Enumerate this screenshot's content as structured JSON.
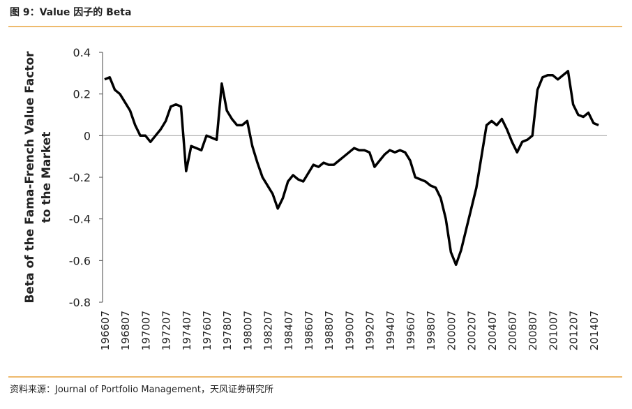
{
  "chart_data": {
    "type": "line",
    "title": "图 9：Value 因子的 Beta",
    "y_label_lines": [
      "Beta of the Fama-French Value Factor",
      "to the Market"
    ],
    "source": "资料来源：Journal of Portfolio Management，天风证券研究所",
    "color": "#000000",
    "ylim": [
      -0.8,
      0.4
    ],
    "yticks": [
      0.4,
      0.2,
      0,
      -0.2,
      -0.4,
      -0.6,
      -0.8
    ],
    "categories": [
      "196607",
      null,
      null,
      null,
      "196807",
      null,
      null,
      null,
      "197007",
      null,
      null,
      null,
      "197207",
      null,
      null,
      null,
      "197407",
      null,
      null,
      null,
      "197607",
      null,
      null,
      null,
      "197807",
      null,
      null,
      null,
      "198007",
      null,
      null,
      null,
      "198207",
      null,
      null,
      null,
      "198407",
      null,
      null,
      null,
      "198607",
      null,
      null,
      null,
      "198807",
      null,
      null,
      null,
      "199007",
      null,
      null,
      null,
      "199207",
      null,
      null,
      null,
      "199407",
      null,
      null,
      null,
      "199607",
      null,
      null,
      null,
      "199807",
      null,
      null,
      null,
      "200007",
      null,
      null,
      null,
      "200207",
      null,
      null,
      null,
      "200407",
      null,
      null,
      null,
      "200607",
      null,
      null,
      null,
      "200807",
      null,
      null,
      null,
      "201007",
      null,
      null,
      null,
      "201207",
      null,
      null,
      null,
      "201407",
      null
    ],
    "values": [
      0.27,
      0.28,
      0.22,
      0.2,
      0.16,
      0.12,
      0.05,
      0.0,
      0.0,
      -0.03,
      0.0,
      0.03,
      0.07,
      0.14,
      0.15,
      0.14,
      -0.17,
      -0.05,
      -0.06,
      -0.07,
      0.0,
      -0.01,
      -0.02,
      0.25,
      0.12,
      0.08,
      0.05,
      0.05,
      0.07,
      -0.05,
      -0.13,
      -0.2,
      -0.24,
      -0.28,
      -0.35,
      -0.3,
      -0.22,
      -0.19,
      -0.21,
      -0.22,
      -0.18,
      -0.14,
      -0.15,
      -0.13,
      -0.14,
      -0.14,
      -0.12,
      -0.1,
      -0.08,
      -0.06,
      -0.07,
      -0.07,
      -0.08,
      -0.15,
      -0.12,
      -0.09,
      -0.07,
      -0.08,
      -0.07,
      -0.08,
      -0.12,
      -0.2,
      -0.21,
      -0.22,
      -0.24,
      -0.25,
      -0.3,
      -0.4,
      -0.56,
      -0.62,
      -0.55,
      -0.45,
      -0.35,
      -0.25,
      -0.1,
      0.05,
      0.07,
      0.05,
      0.08,
      0.03,
      -0.03,
      -0.08,
      -0.03,
      -0.02,
      0.0,
      0.22,
      0.28,
      0.29,
      0.29,
      0.27,
      0.29,
      0.31,
      0.15,
      0.1,
      0.09,
      0.11,
      0.06,
      0.05
    ]
  }
}
